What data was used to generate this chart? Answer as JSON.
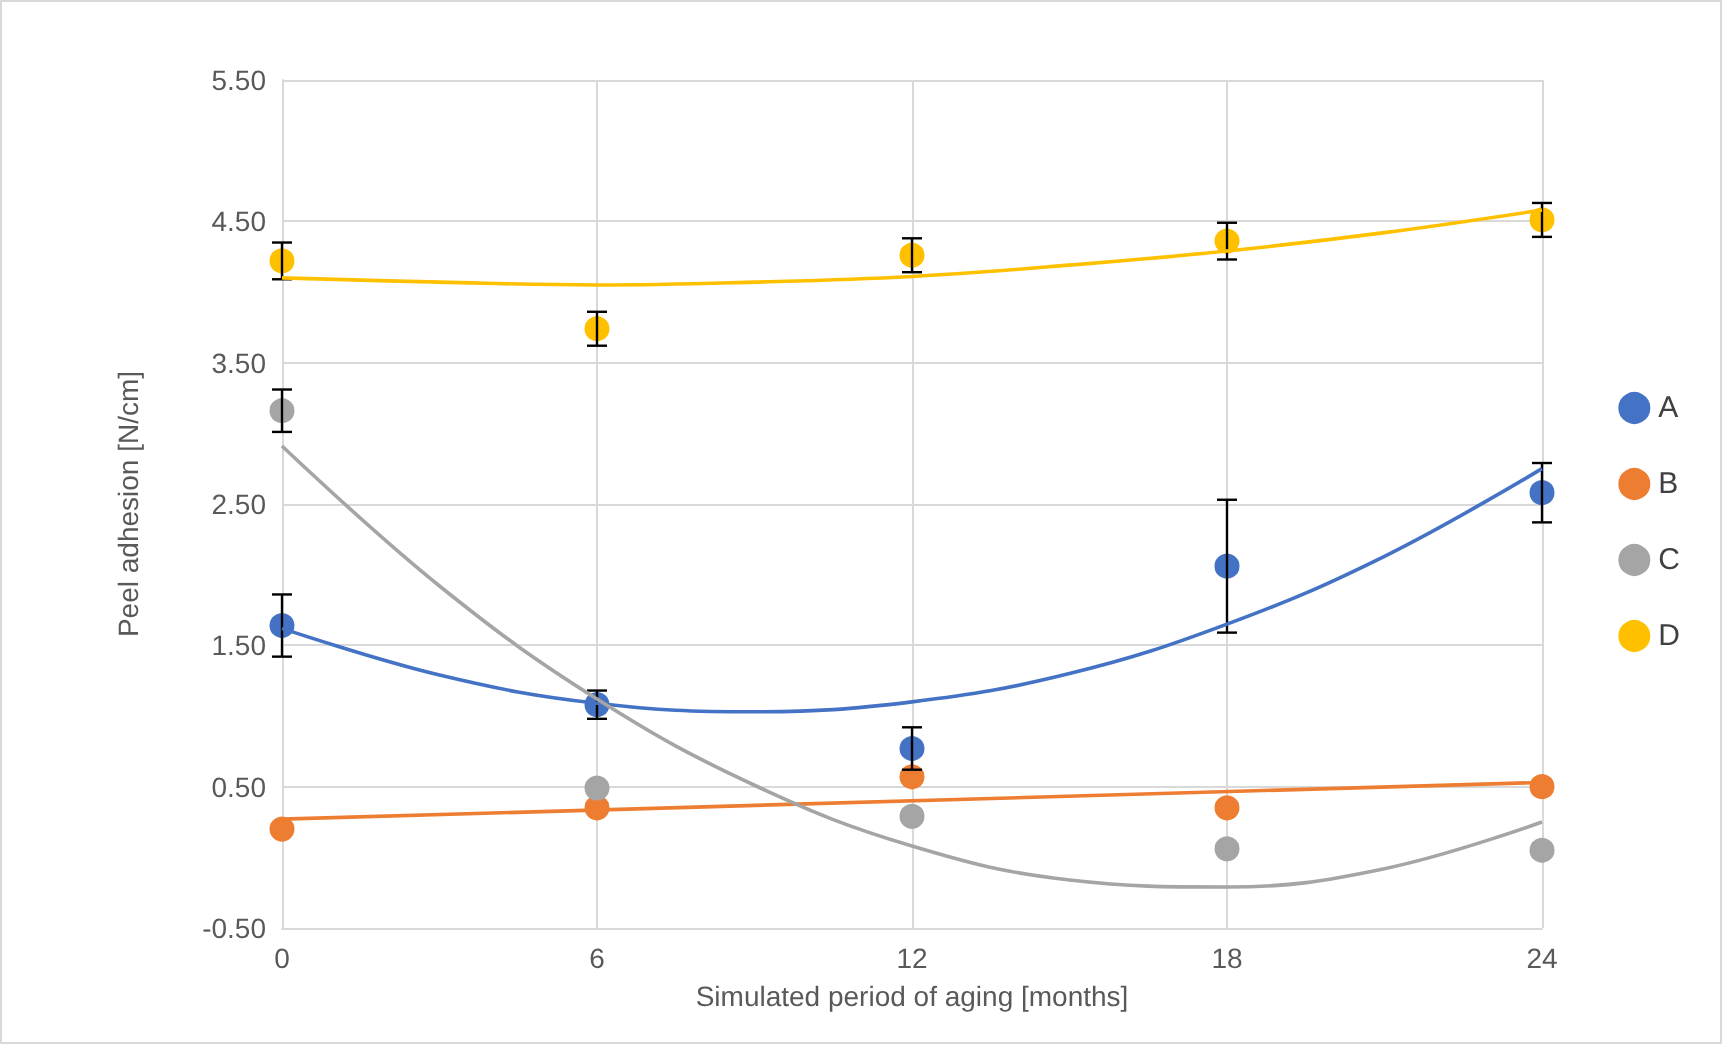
{
  "chart_data": {
    "type": "scatter",
    "xlabel": "Simulated period of aging [months]",
    "ylabel": "Peel adhesion [N/cm]",
    "x": [
      0,
      6,
      12,
      18,
      24
    ],
    "series": [
      {
        "name": "A",
        "color": "#4472c4",
        "values": [
          1.64,
          1.08,
          0.77,
          2.06,
          2.58
        ],
        "errors": [
          0.22,
          0.1,
          0.15,
          0.47,
          0.21
        ],
        "marker": "circle"
      },
      {
        "name": "B",
        "color": "#ed7d31",
        "values": [
          0.2,
          0.35,
          0.57,
          0.35,
          0.5
        ],
        "marker": "circle"
      },
      {
        "name": "C",
        "color": "#a5a5a5",
        "values": [
          3.16,
          0.49,
          0.29,
          0.06,
          0.05
        ],
        "errors": [
          0.15,
          null,
          null,
          null,
          null
        ],
        "marker": "circle"
      },
      {
        "name": "D",
        "color": "#ffc000",
        "values": [
          4.22,
          3.74,
          4.26,
          4.36,
          4.51
        ],
        "errors": [
          0.13,
          0.12,
          0.12,
          0.13,
          0.12
        ],
        "marker": "circle"
      },
      {
        "type": "line",
        "color": "#4472c4",
        "x": [
          0,
          3,
          6,
          9,
          12,
          15,
          18,
          21,
          24
        ],
        "values": [
          1.62,
          1.29,
          1.09,
          1.03,
          1.1,
          1.3,
          1.65,
          2.13,
          2.75
        ]
      },
      {
        "type": "line",
        "color": "#ed7d31",
        "x": [
          0,
          24
        ],
        "values": [
          0.27,
          0.53
        ]
      },
      {
        "type": "line",
        "color": "#a5a5a5",
        "x": [
          0,
          3,
          6,
          9,
          12,
          15,
          18,
          21,
          24
        ],
        "values": [
          2.91,
          1.92,
          1.12,
          0.51,
          0.08,
          -0.16,
          -0.21,
          -0.08,
          0.25
        ]
      },
      {
        "type": "line",
        "color": "#ffc000",
        "x": [
          0,
          3,
          6,
          9,
          12,
          15,
          18,
          21,
          24
        ],
        "values": [
          4.1,
          4.07,
          4.05,
          4.07,
          4.11,
          4.19,
          4.29,
          4.42,
          4.58
        ]
      }
    ],
    "xlim": [
      0,
      24
    ],
    "xticks": [
      0,
      6,
      12,
      18,
      24
    ],
    "ylim": [
      -0.5,
      5.5
    ],
    "yticks": [
      {
        "value": -0.5,
        "label": "-0.50"
      },
      {
        "value": 0.5,
        "label": "0.50"
      },
      {
        "value": 1.5,
        "label": "1.50"
      },
      {
        "value": 2.5,
        "label": "2.50"
      },
      {
        "value": 3.5,
        "label": "3.50"
      },
      {
        "value": 4.5,
        "label": "4.50"
      },
      {
        "value": 5.5,
        "label": "5.50"
      }
    ],
    "grid": true,
    "legend": "right"
  }
}
